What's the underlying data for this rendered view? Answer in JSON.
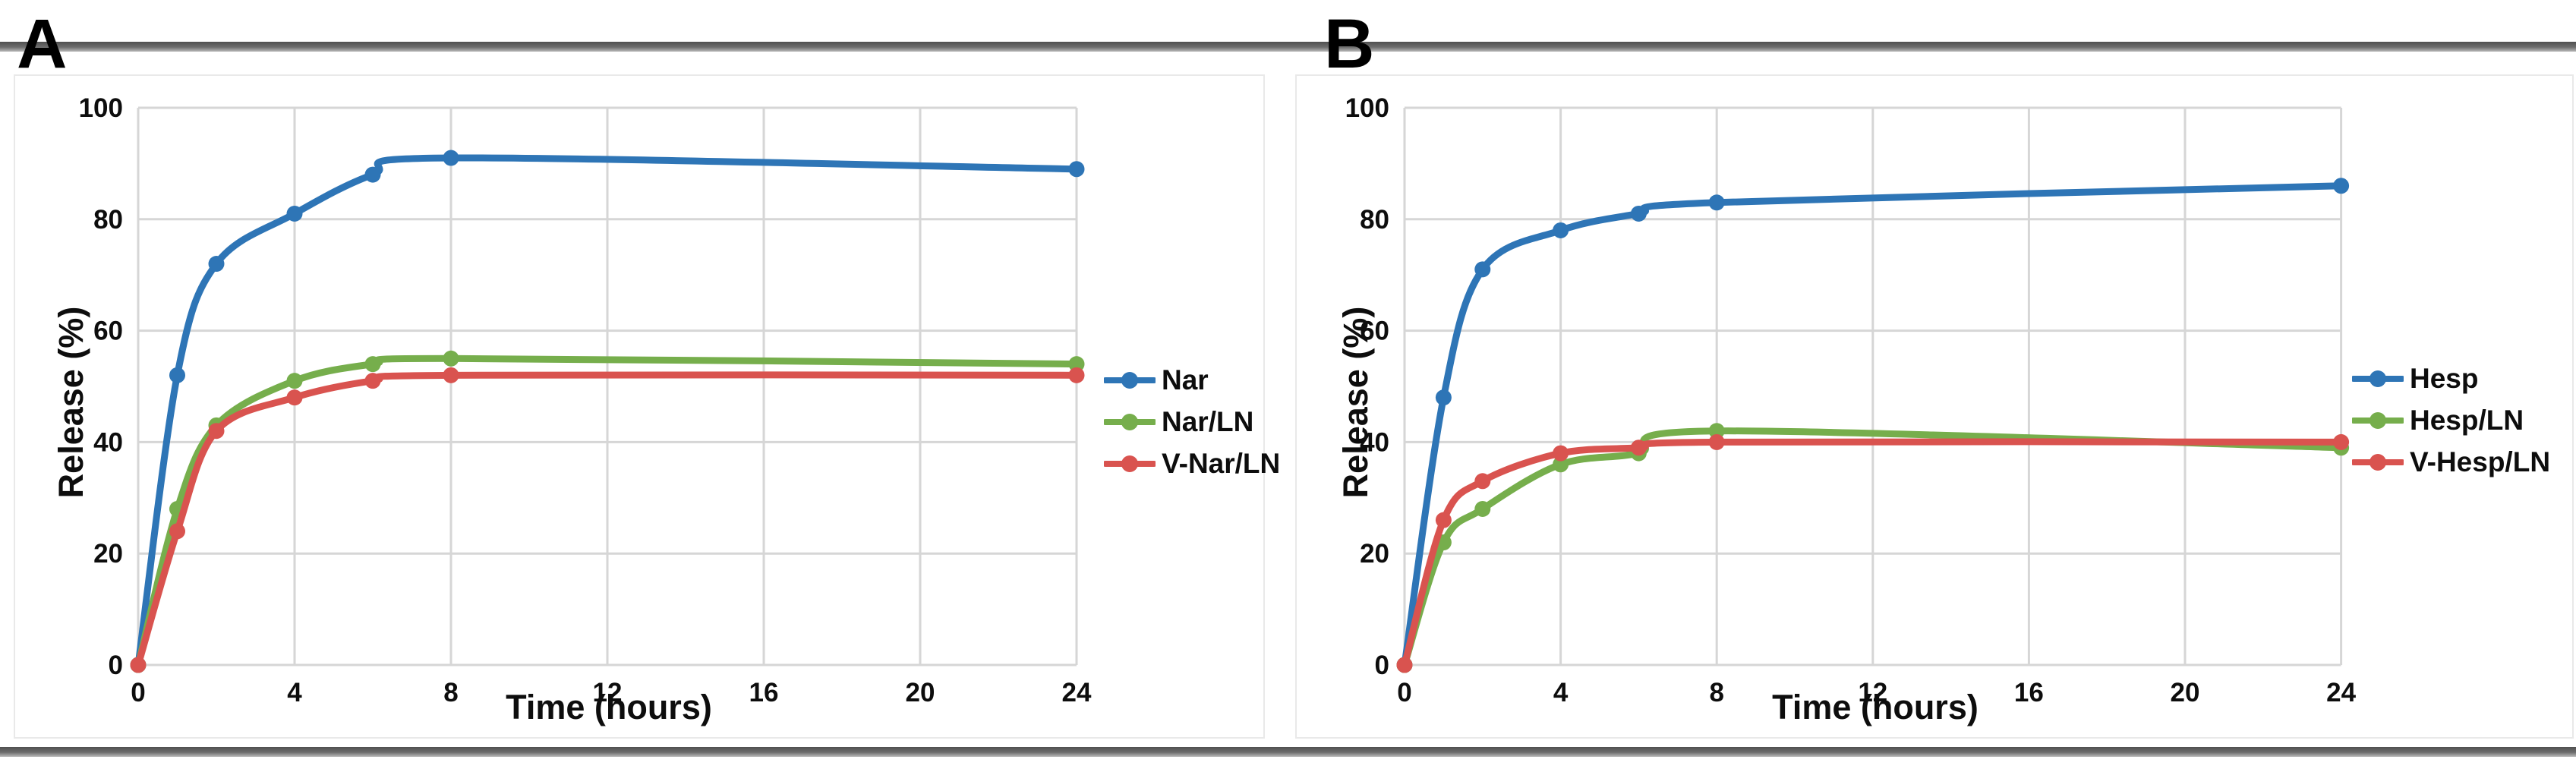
{
  "figure": {
    "panel_a_label": "A",
    "panel_b_label": "B"
  },
  "chart_data": [
    {
      "type": "line",
      "panel_label": "A",
      "xlabel": "Time (hours)",
      "ylabel": "Release (%)",
      "x": [
        0,
        1,
        2,
        4,
        6,
        8,
        24
      ],
      "xticks": [
        0,
        4,
        8,
        12,
        16,
        20,
        24
      ],
      "yticks": [
        0,
        20,
        40,
        60,
        80,
        100
      ],
      "xlim": [
        0,
        24
      ],
      "ylim": [
        0,
        100
      ],
      "grid": true,
      "legend_position": "right",
      "series": [
        {
          "name": "Nar",
          "color": "#2E75B6",
          "values": [
            0,
            52,
            72,
            81,
            88,
            91,
            89
          ]
        },
        {
          "name": "Nar/LN",
          "color": "#76AE4C",
          "values": [
            0,
            28,
            43,
            51,
            54,
            55,
            54
          ]
        },
        {
          "name": "V-Nar/LN",
          "color": "#D9534F",
          "values": [
            0,
            24,
            42,
            48,
            51,
            52,
            52
          ]
        }
      ]
    },
    {
      "type": "line",
      "panel_label": "B",
      "xlabel": "Time (hours)",
      "ylabel": "Release (%)",
      "x": [
        0,
        1,
        2,
        4,
        6,
        8,
        24
      ],
      "xticks": [
        0,
        4,
        8,
        12,
        16,
        20,
        24
      ],
      "yticks": [
        0,
        20,
        40,
        60,
        80,
        100
      ],
      "xlim": [
        0,
        24
      ],
      "ylim": [
        0,
        100
      ],
      "grid": true,
      "legend_position": "right",
      "series": [
        {
          "name": "Hesp",
          "color": "#2E75B6",
          "values": [
            0,
            48,
            71,
            78,
            81,
            83,
            86
          ]
        },
        {
          "name": "Hesp/LN",
          "color": "#76AE4C",
          "values": [
            0,
            22,
            28,
            36,
            38,
            42,
            39
          ]
        },
        {
          "name": "V-Hesp/LN",
          "color": "#D9534F",
          "values": [
            0,
            26,
            33,
            38,
            39,
            40,
            40
          ]
        }
      ]
    }
  ],
  "style": {
    "grid_color": "#D6D6D6",
    "text_color": "#0d0d0d",
    "background": "#FFFFFF",
    "blue": "#2E75B6",
    "green": "#76AE4C",
    "red": "#D9534F"
  }
}
